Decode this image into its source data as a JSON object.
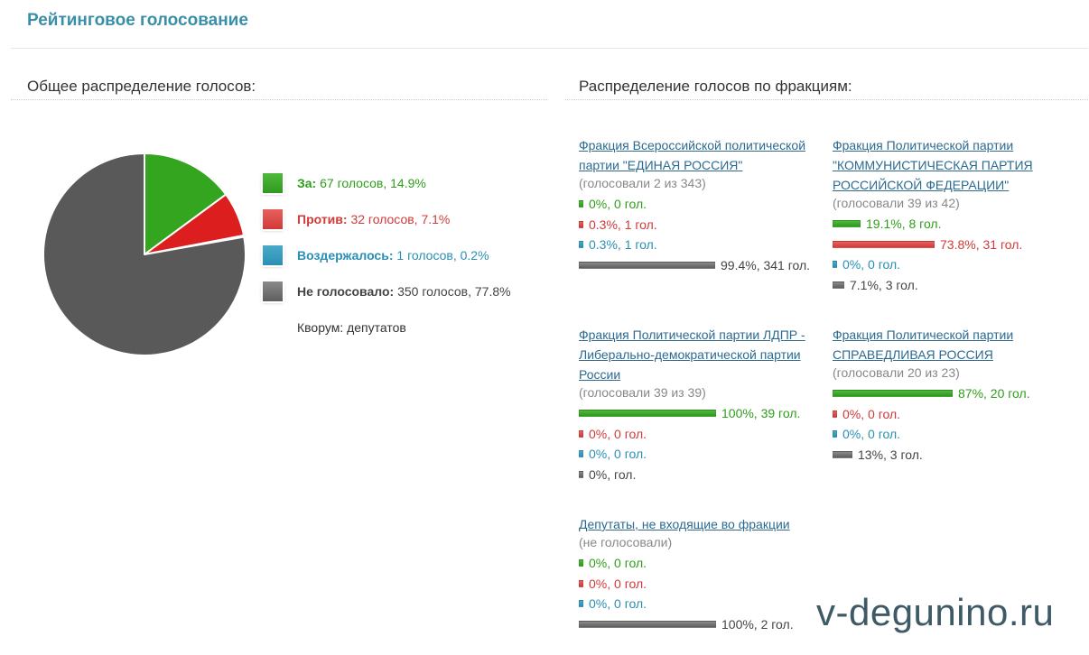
{
  "header": {
    "title": "Рейтинговое голосование"
  },
  "sections": {
    "overall": "Общее распределение голосов:",
    "factions": "Распределение голосов по фракциям:"
  },
  "chart_data": {
    "type": "pie",
    "title": "",
    "slices": [
      {
        "key": "za",
        "label": "За:",
        "detail": "67 голосов, 14.9%",
        "votes": 67,
        "percent": 14.9,
        "color": "#33a51e"
      },
      {
        "key": "protiv",
        "label": "Против:",
        "detail": "32 голосов, 7.1%",
        "votes": 32,
        "percent": 7.1,
        "color": "#dc1e1e"
      },
      {
        "key": "vozd",
        "label": "Воздержалось:",
        "detail": "1 голосов, 0.2%",
        "votes": 1,
        "percent": 0.2,
        "color": "#2a8fb5"
      },
      {
        "key": "ne",
        "label": "Не голосовало:",
        "detail": "350 голосов, 77.8%",
        "votes": 350,
        "percent": 77.8,
        "color": "#595959"
      }
    ],
    "legend_position": "right"
  },
  "quorum": "Кворум: депутатов",
  "factions": [
    {
      "name": "Фракция Всероссийской политической партии \"ЕДИНАЯ РОССИЯ\"",
      "voted": "(голосовали 2 из 343)",
      "rows": [
        {
          "type": "za",
          "percent": 0,
          "text": "0%, 0 гол."
        },
        {
          "type": "protiv",
          "percent": 0.3,
          "text": "0.3%, 1 гол."
        },
        {
          "type": "vozd",
          "percent": 0.3,
          "text": "0.3%, 1 гол."
        },
        {
          "type": "ne",
          "percent": 99.4,
          "text": "99.4%, 341 гол."
        }
      ]
    },
    {
      "name": "Фракция Политической партии \"КОММУНИСТИЧЕСКАЯ ПАРТИЯ РОССИЙСКОЙ ФЕДЕРАЦИИ\"",
      "voted": "(голосовали 39 из 42)",
      "rows": [
        {
          "type": "za",
          "percent": 19.1,
          "text": "19.1%, 8 гол."
        },
        {
          "type": "protiv",
          "percent": 73.8,
          "text": "73.8%, 31 гол."
        },
        {
          "type": "vozd",
          "percent": 0,
          "text": "0%, 0 гол."
        },
        {
          "type": "ne",
          "percent": 7.1,
          "text": "7.1%, 3 гол."
        }
      ]
    },
    {
      "name": "Фракция Политической партии ЛДПР - Либерально-демократической партии России",
      "voted": "(голосовали 39 из 39)",
      "rows": [
        {
          "type": "za",
          "percent": 100,
          "text": "100%, 39 гол."
        },
        {
          "type": "protiv",
          "percent": 0,
          "text": "0%, 0 гол."
        },
        {
          "type": "vozd",
          "percent": 0,
          "text": "0%, 0 гол."
        },
        {
          "type": "ne",
          "percent": 0,
          "text": "0%, гол."
        }
      ]
    },
    {
      "name": "Фракция Политической партии СПРАВЕДЛИВАЯ РОССИЯ",
      "voted": "(голосовали 20 из 23)",
      "rows": [
        {
          "type": "za",
          "percent": 87,
          "text": "87%, 20 гол."
        },
        {
          "type": "protiv",
          "percent": 0,
          "text": "0%, 0 гол."
        },
        {
          "type": "vozd",
          "percent": 0,
          "text": "0%, 0 гол."
        },
        {
          "type": "ne",
          "percent": 13,
          "text": "13%, 3 гол."
        }
      ]
    },
    {
      "name": "Депутаты, не входящие во фракции",
      "voted": "(не голосовали)",
      "rows": [
        {
          "type": "za",
          "percent": 0,
          "text": "0%, 0 гол."
        },
        {
          "type": "protiv",
          "percent": 0,
          "text": "0%, 0 гол."
        },
        {
          "type": "vozd",
          "percent": 0,
          "text": "0%, 0 гол."
        },
        {
          "type": "ne",
          "percent": 100,
          "text": "100%, 2 гол."
        }
      ]
    }
  ],
  "watermark": "v-degunino.ru"
}
